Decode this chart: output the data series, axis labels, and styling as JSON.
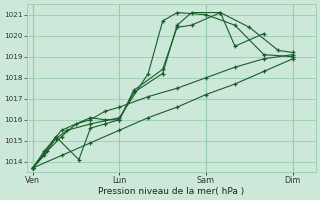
{
  "xlabel": "Pression niveau de la mer( hPa )",
  "ylim": [
    1013.5,
    1021.5
  ],
  "yticks": [
    1014,
    1015,
    1016,
    1017,
    1018,
    1019,
    1020,
    1021
  ],
  "day_labels": [
    "Ven",
    "Lun",
    "Sam",
    "Dim"
  ],
  "day_positions": [
    0,
    3,
    6,
    9
  ],
  "bg_color": "#cce8d8",
  "grid_color": "#99ccb0",
  "line_color": "#1a5c2a",
  "series": [
    {
      "x": [
        0.0,
        0.4,
        0.8,
        1.2,
        2.0,
        3.0,
        4.0,
        4.5,
        5.0,
        6.0,
        7.0,
        8.0,
        9.0
      ],
      "y": [
        1013.7,
        1014.3,
        1015.1,
        1015.5,
        1015.8,
        1016.1,
        1018.2,
        1020.7,
        1021.1,
        1021.0,
        1020.5,
        1019.1,
        1019.0
      ]
    },
    {
      "x": [
        0.0,
        0.4,
        0.8,
        1.6,
        2.0,
        2.5,
        3.0,
        3.5,
        4.5,
        5.0,
        5.5,
        6.5,
        7.5,
        8.5,
        9.0
      ],
      "y": [
        1013.7,
        1014.4,
        1015.2,
        1014.1,
        1015.6,
        1015.8,
        1016.0,
        1017.3,
        1018.2,
        1020.5,
        1021.1,
        1021.1,
        1020.4,
        1019.3,
        1019.2
      ]
    },
    {
      "x": [
        0.0,
        0.4,
        1.0,
        2.0,
        2.5,
        3.0,
        3.5,
        4.5,
        5.0,
        5.5,
        6.5,
        7.0,
        8.0
      ],
      "y": [
        1013.7,
        1014.5,
        1015.5,
        1016.1,
        1016.0,
        1016.0,
        1017.4,
        1018.4,
        1020.4,
        1020.5,
        1021.1,
        1019.5,
        1020.1
      ]
    },
    {
      "x": [
        0.0,
        0.5,
        1.0,
        1.5,
        2.0,
        2.5,
        3.0,
        4.0,
        5.0,
        6.0,
        7.0,
        8.0,
        9.0
      ],
      "y": [
        1013.7,
        1014.5,
        1015.2,
        1015.8,
        1016.0,
        1016.4,
        1016.6,
        1017.1,
        1017.5,
        1018.0,
        1018.5,
        1018.9,
        1019.1
      ]
    },
    {
      "x": [
        0.0,
        1.0,
        2.0,
        3.0,
        4.0,
        5.0,
        6.0,
        7.0,
        8.0,
        9.0
      ],
      "y": [
        1013.7,
        1014.3,
        1014.9,
        1015.5,
        1016.1,
        1016.6,
        1017.2,
        1017.7,
        1018.3,
        1018.9
      ]
    }
  ]
}
